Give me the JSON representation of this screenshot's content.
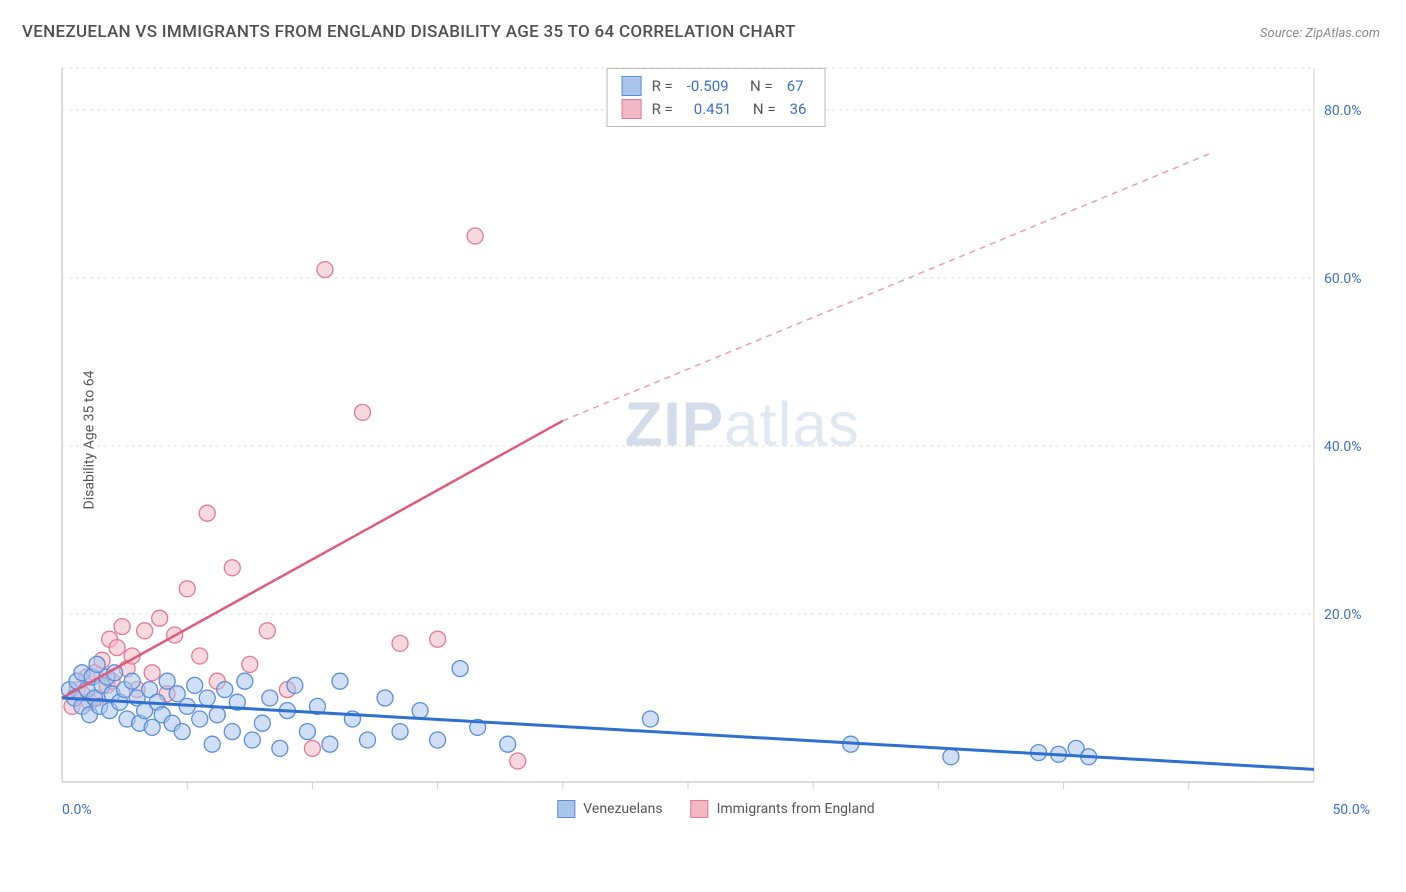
{
  "title": "VENEZUELAN VS IMMIGRANTS FROM ENGLAND DISABILITY AGE 35 TO 64 CORRELATION CHART",
  "source": "Source: ZipAtlas.com",
  "y_axis_label": "Disability Age 35 to 64",
  "watermark": {
    "bold": "ZIP",
    "light": "atlas"
  },
  "chart": {
    "type": "scatter",
    "xlim": [
      0,
      50
    ],
    "ylim": [
      0,
      85
    ],
    "x_ticks_minor_step": 5,
    "y_gridlines": [
      20,
      40,
      60,
      80
    ],
    "y_tick_labels": [
      "20.0%",
      "40.0%",
      "60.0%",
      "80.0%"
    ],
    "x_tick_labels": {
      "left": "0.0%",
      "right": "50.0%"
    },
    "background_color": "#ffffff",
    "grid_color": "#dddddd",
    "axis_color": "#cfcfcf",
    "series": [
      {
        "name": "Venezuelans",
        "color_fill": "#a9c5ec",
        "color_stroke": "#5a8fd6",
        "marker_radius": 8,
        "fill_opacity": 0.55,
        "R": "-0.509",
        "N": "67",
        "trend": {
          "x1": 0,
          "y1": 10.0,
          "x2": 50,
          "y2": 1.5,
          "color": "#2f6fd0",
          "width": 3,
          "dash": "none"
        },
        "points": [
          [
            0.3,
            11
          ],
          [
            0.5,
            10
          ],
          [
            0.6,
            12
          ],
          [
            0.8,
            9
          ],
          [
            0.8,
            13
          ],
          [
            1.0,
            11
          ],
          [
            1.1,
            8
          ],
          [
            1.2,
            12.5
          ],
          [
            1.3,
            10
          ],
          [
            1.4,
            14
          ],
          [
            1.5,
            9
          ],
          [
            1.6,
            11.5
          ],
          [
            1.8,
            12.5
          ],
          [
            1.9,
            8.5
          ],
          [
            2.0,
            10.5
          ],
          [
            2.1,
            13
          ],
          [
            2.3,
            9.5
          ],
          [
            2.5,
            11
          ],
          [
            2.6,
            7.5
          ],
          [
            2.8,
            12
          ],
          [
            3.0,
            10
          ],
          [
            3.1,
            7
          ],
          [
            3.3,
            8.5
          ],
          [
            3.5,
            11
          ],
          [
            3.6,
            6.5
          ],
          [
            3.8,
            9.5
          ],
          [
            4.0,
            8
          ],
          [
            4.2,
            12
          ],
          [
            4.4,
            7
          ],
          [
            4.6,
            10.5
          ],
          [
            4.8,
            6
          ],
          [
            5.0,
            9
          ],
          [
            5.3,
            11.5
          ],
          [
            5.5,
            7.5
          ],
          [
            5.8,
            10
          ],
          [
            6.0,
            4.5
          ],
          [
            6.2,
            8
          ],
          [
            6.5,
            11
          ],
          [
            6.8,
            6
          ],
          [
            7.0,
            9.5
          ],
          [
            7.3,
            12
          ],
          [
            7.6,
            5
          ],
          [
            8.0,
            7
          ],
          [
            8.3,
            10
          ],
          [
            8.7,
            4
          ],
          [
            9.0,
            8.5
          ],
          [
            9.3,
            11.5
          ],
          [
            9.8,
            6
          ],
          [
            10.2,
            9
          ],
          [
            10.7,
            4.5
          ],
          [
            11.1,
            12
          ],
          [
            11.6,
            7.5
          ],
          [
            12.2,
            5
          ],
          [
            12.9,
            10
          ],
          [
            13.5,
            6
          ],
          [
            14.3,
            8.5
          ],
          [
            15.0,
            5
          ],
          [
            15.9,
            13.5
          ],
          [
            16.6,
            6.5
          ],
          [
            17.8,
            4.5
          ],
          [
            23.5,
            7.5
          ],
          [
            31.5,
            4.5
          ],
          [
            35.5,
            3.0
          ],
          [
            39.0,
            3.5
          ],
          [
            39.8,
            3.3
          ],
          [
            40.5,
            4.0
          ],
          [
            41.0,
            3.0
          ]
        ]
      },
      {
        "name": "Immigrants from England",
        "color_fill": "#f2b8c6",
        "color_stroke": "#e07a94",
        "marker_radius": 8,
        "fill_opacity": 0.55,
        "R": "0.451",
        "N": "36",
        "trend_solid": {
          "x1": 0,
          "y1": 10,
          "x2": 20,
          "y2": 43,
          "color": "#e05a7a",
          "width": 2.5
        },
        "trend_dash": {
          "x1": 20,
          "y1": 43,
          "x2": 46,
          "y2": 75,
          "color": "#e8a0b0",
          "width": 1.5,
          "dash": "6,5"
        },
        "points": [
          [
            0.4,
            9
          ],
          [
            0.6,
            11
          ],
          [
            0.8,
            10.5
          ],
          [
            1.0,
            12.5
          ],
          [
            1.1,
            9.5
          ],
          [
            1.3,
            13
          ],
          [
            1.4,
            10
          ],
          [
            1.6,
            14.5
          ],
          [
            1.8,
            11.5
          ],
          [
            1.9,
            17
          ],
          [
            2.0,
            12
          ],
          [
            2.2,
            16
          ],
          [
            2.4,
            18.5
          ],
          [
            2.6,
            13.5
          ],
          [
            2.8,
            15
          ],
          [
            3.0,
            11
          ],
          [
            3.3,
            18
          ],
          [
            3.6,
            13
          ],
          [
            3.9,
            19.5
          ],
          [
            4.2,
            10.5
          ],
          [
            4.5,
            17.5
          ],
          [
            5.0,
            23
          ],
          [
            5.5,
            15
          ],
          [
            5.8,
            32
          ],
          [
            6.2,
            12
          ],
          [
            6.8,
            25.5
          ],
          [
            7.5,
            14
          ],
          [
            8.2,
            18
          ],
          [
            9.0,
            11
          ],
          [
            10.5,
            61
          ],
          [
            12.0,
            44
          ],
          [
            13.5,
            16.5
          ],
          [
            15.0,
            17
          ],
          [
            16.5,
            65
          ],
          [
            18.2,
            2.5
          ],
          [
            10.0,
            4
          ]
        ]
      }
    ],
    "bottom_legend": [
      {
        "label": "Venezuelans",
        "fill": "#a9c5ec",
        "stroke": "#5a8fd6"
      },
      {
        "label": "Immigrants from England",
        "fill": "#f2b8c6",
        "stroke": "#e07a94"
      }
    ]
  }
}
